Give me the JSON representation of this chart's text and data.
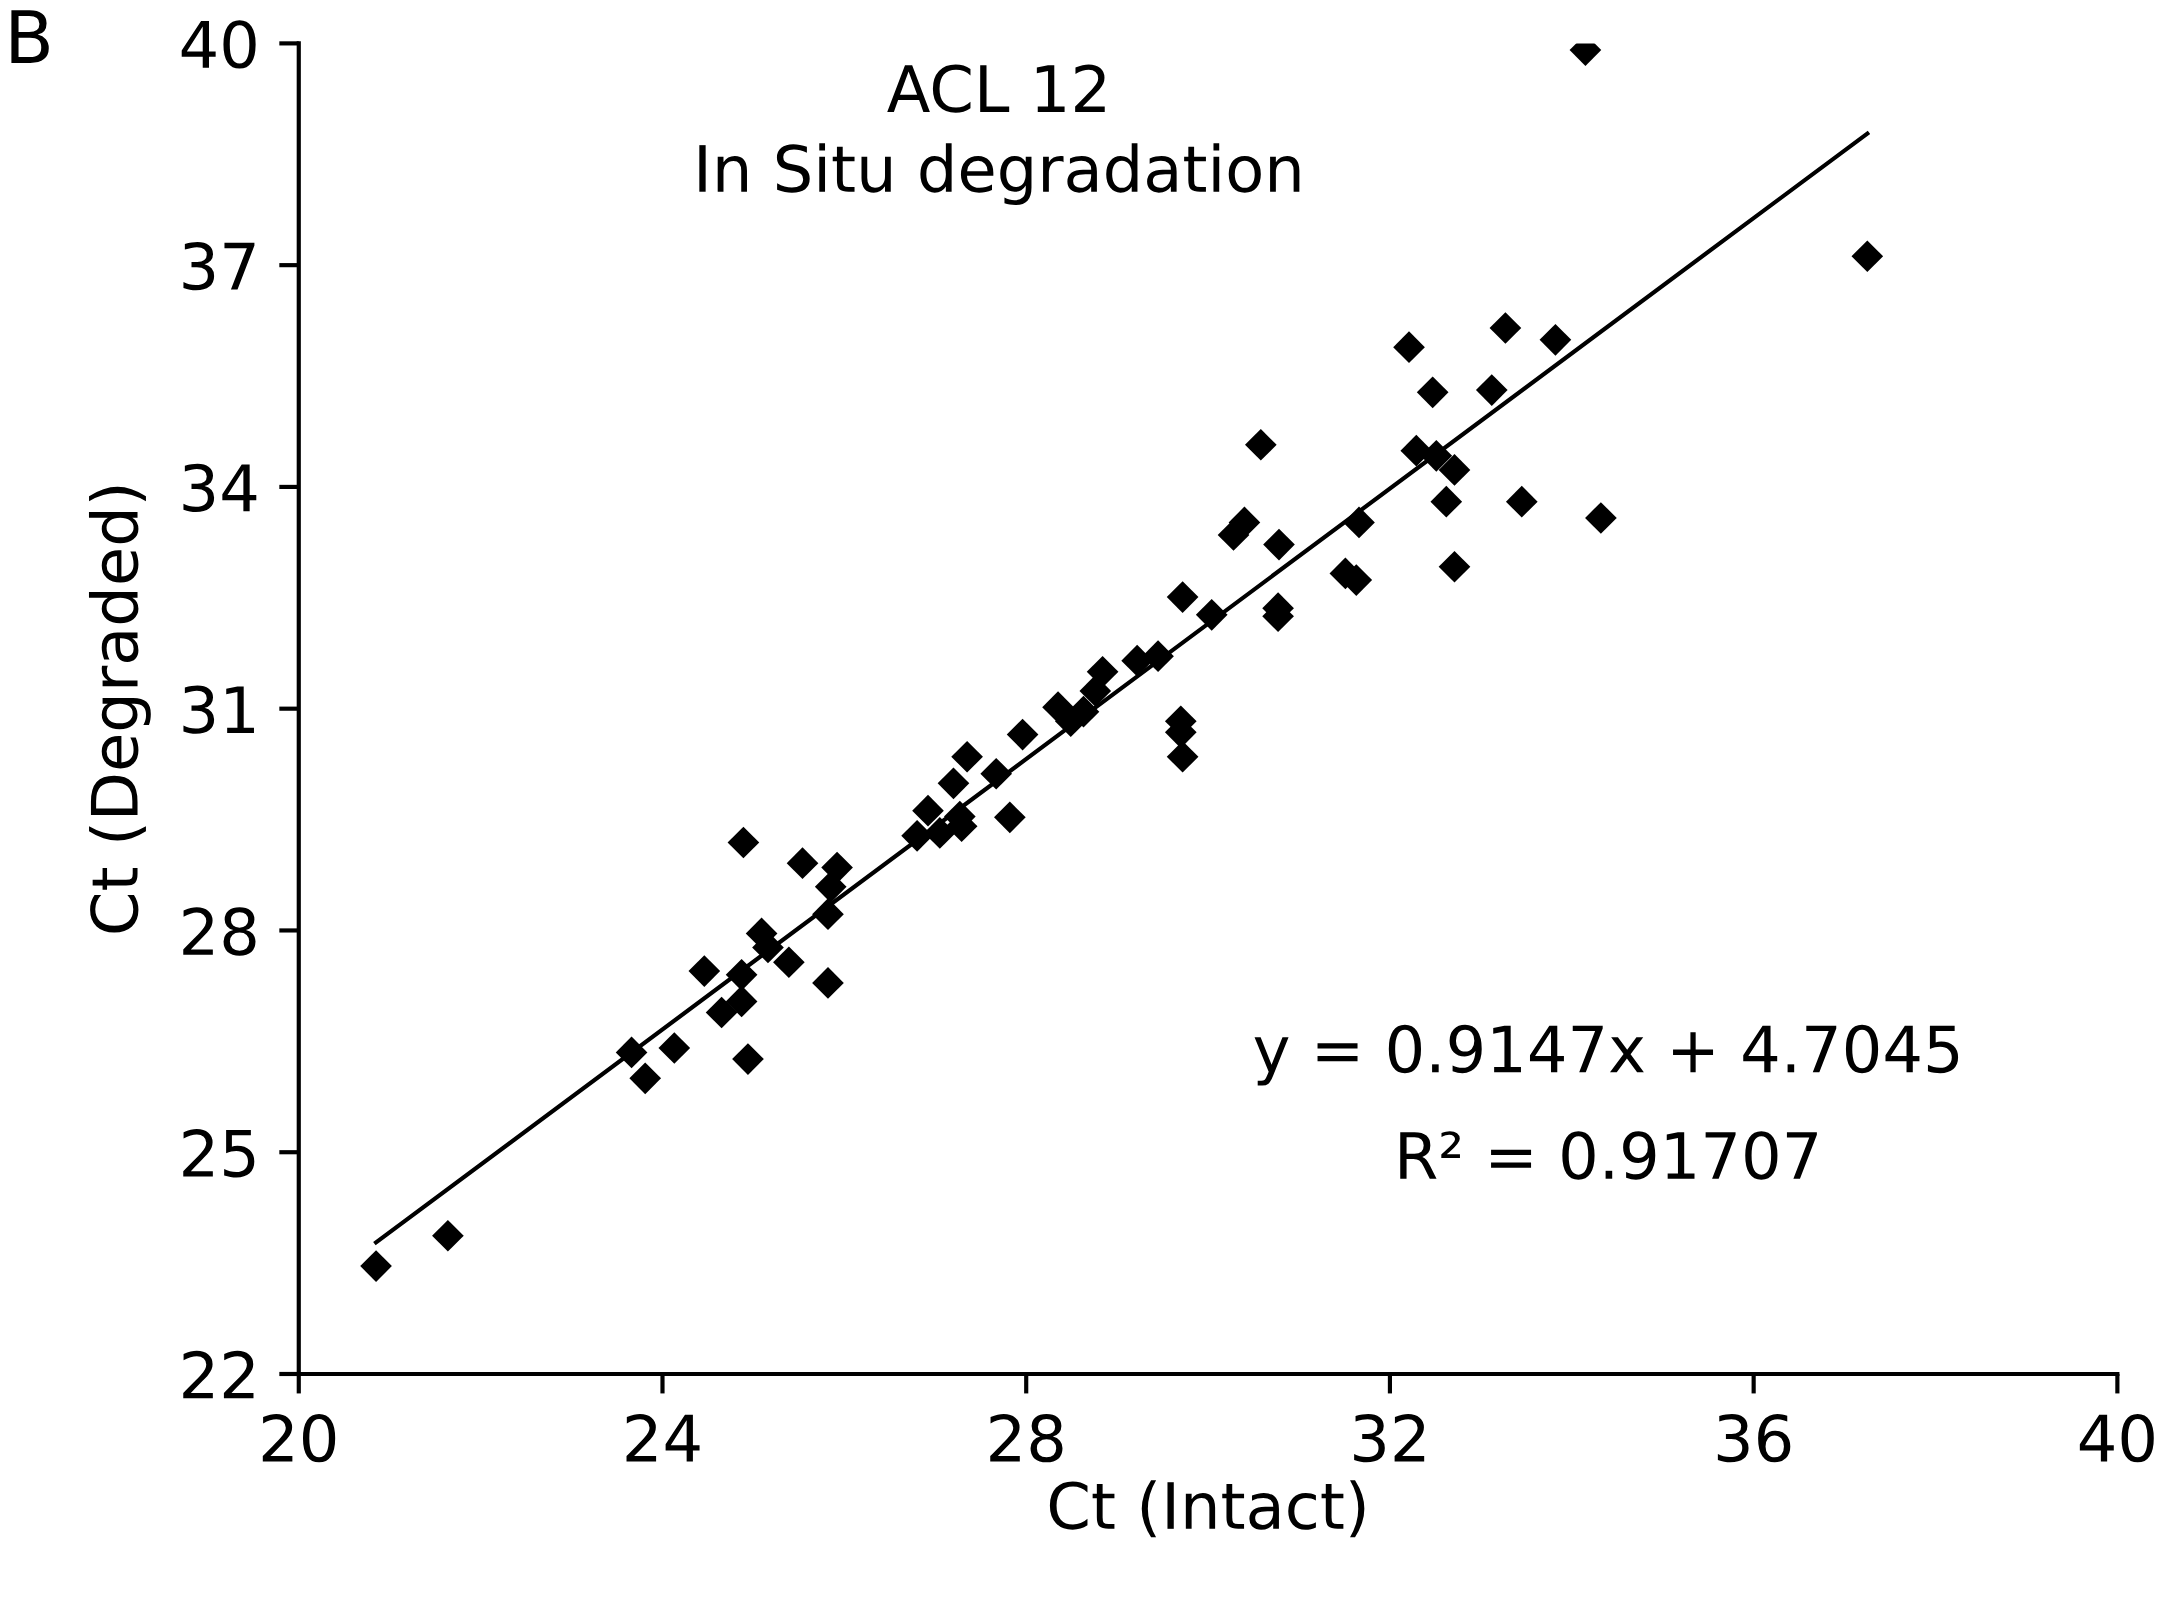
{
  "chart_data": {
    "type": "scatter",
    "title": "ACL 12",
    "subtitle": "In Situ degradation",
    "xlabel": "Ct (Intact)",
    "ylabel": "Ct (Degraded)",
    "annotations": [
      "y = 0.9147x + 4.7045",
      "R² = 0.91707",
      "B"
    ],
    "xlim": [
      20,
      40
    ],
    "xticks": [
      20,
      24,
      28,
      32,
      36,
      40
    ],
    "ylim": [
      22,
      40
    ],
    "yticks": [
      22,
      25,
      28,
      31,
      34,
      37,
      40
    ],
    "grid": false,
    "marker": "diamond",
    "series": [
      {
        "color": "#000000",
        "x": [
          20.85,
          21.64,
          23.66,
          23.81,
          24.13,
          24.46,
          24.65,
          24.87,
          24.87,
          24.89,
          24.94,
          25.09,
          25.16,
          25.39,
          25.54,
          25.82,
          25.82,
          25.85,
          25.92,
          26.8,
          26.92,
          27.05,
          27.2,
          27.27,
          27.29,
          27.35,
          27.67,
          27.82,
          27.96,
          28.35,
          28.49,
          28.63,
          28.76,
          28.84,
          29.22,
          29.45,
          29.7,
          29.7,
          29.72,
          29.72,
          30.04,
          30.28,
          30.4,
          30.58,
          30.77,
          30.77,
          30.78,
          31.51,
          31.63,
          31.66,
          32.21,
          32.29,
          32.47,
          32.51,
          32.62,
          32.71,
          32.71,
          33.12,
          33.27,
          33.45,
          33.82,
          34.15,
          34.32,
          37.25
        ],
        "values": [
          23.46,
          23.87,
          26.35,
          26.0,
          26.41,
          27.45,
          26.89,
          27.4,
          27.04,
          29.19,
          26.26,
          27.96,
          27.77,
          27.57,
          28.91,
          28.22,
          27.29,
          28.59,
          28.85,
          29.28,
          29.62,
          29.32,
          29.99,
          29.54,
          29.41,
          30.35,
          30.12,
          29.53,
          30.65,
          31.02,
          30.83,
          30.96,
          31.24,
          31.5,
          31.65,
          31.71,
          30.83,
          30.68,
          30.35,
          32.51,
          32.27,
          33.35,
          33.52,
          34.57,
          32.36,
          32.25,
          33.22,
          32.83,
          32.74,
          33.52,
          35.89,
          34.49,
          35.28,
          34.42,
          33.8,
          34.23,
          32.92,
          35.31,
          36.15,
          33.8,
          35.99,
          39.91,
          33.58,
          37.12
        ]
      },
      {
        "type": "line",
        "color": "#000000",
        "marker": "none",
        "line_style": "solid",
        "x": [
          20.85,
          37.25
        ],
        "values": [
          23.78,
          38.78
        ]
      }
    ]
  }
}
